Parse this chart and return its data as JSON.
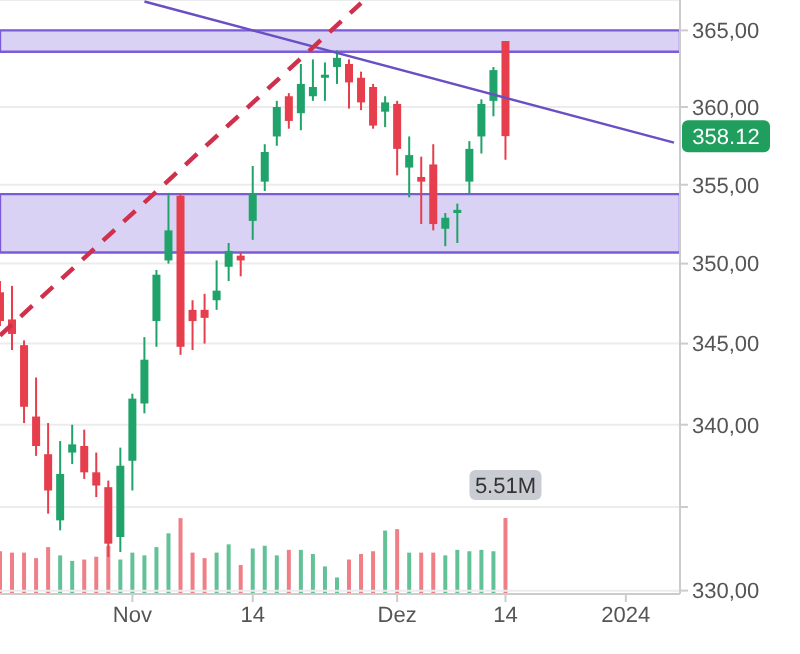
{
  "chart_data": [
    {
      "type": "candlestick",
      "categories": [
        null,
        null,
        null,
        null,
        null,
        null,
        null,
        null,
        null,
        null,
        null,
        "Nov",
        null,
        null,
        null,
        null,
        null,
        null,
        null,
        null,
        null,
        "14",
        null,
        null,
        null,
        null,
        null,
        null,
        null,
        null,
        null,
        null,
        null,
        "Dez",
        null,
        null,
        null,
        null,
        null,
        null,
        null,
        null,
        "14",
        null,
        null,
        null,
        null,
        null,
        null,
        null,
        null,
        null,
        "2024",
        null,
        null,
        null,
        null
      ],
      "ohlc": [
        [
          348.2,
          348.9,
          346.1,
          346.4
        ],
        [
          346.5,
          348.6,
          344.6,
          345.6
        ],
        [
          344.9,
          345.2,
          340.1,
          341.1
        ],
        [
          340.5,
          342.9,
          338.1,
          338.7
        ],
        [
          338.2,
          340.1,
          334.6,
          336.0
        ],
        [
          334.2,
          339.0,
          333.6,
          337.0
        ],
        [
          338.3,
          340.0,
          337.6,
          338.8
        ],
        [
          338.7,
          339.7,
          336.7,
          337.1
        ],
        [
          337.1,
          338.3,
          335.6,
          336.3
        ],
        [
          336.2,
          336.6,
          332.0,
          332.8
        ],
        [
          333.2,
          338.6,
          332.3,
          337.5
        ],
        [
          337.8,
          341.9,
          336.0,
          341.6
        ],
        [
          341.3,
          345.4,
          340.7,
          344.0
        ],
        [
          346.4,
          349.6,
          344.8,
          349.3
        ],
        [
          350.2,
          354.4,
          350.0,
          352.1
        ],
        [
          354.3,
          354.4,
          344.3,
          344.8
        ],
        [
          347.1,
          347.7,
          344.6,
          346.4
        ],
        [
          347.1,
          348.1,
          345.0,
          346.6
        ],
        [
          347.7,
          350.2,
          347.1,
          348.3
        ],
        [
          349.8,
          351.3,
          348.9,
          350.8
        ],
        [
          350.5,
          350.7,
          349.2,
          350.2
        ],
        [
          352.7,
          356.2,
          351.5,
          354.4
        ],
        [
          355.2,
          357.6,
          354.6,
          357.1
        ],
        [
          358.1,
          360.4,
          357.5,
          360.0
        ],
        [
          360.7,
          360.9,
          358.6,
          359.1
        ],
        [
          359.6,
          362.8,
          358.5,
          361.5
        ],
        [
          360.7,
          363.1,
          360.4,
          361.3
        ],
        [
          361.9,
          362.9,
          360.4,
          362.1
        ],
        [
          362.6,
          363.7,
          361.5,
          363.2
        ],
        [
          362.8,
          363.1,
          359.9,
          361.6
        ],
        [
          361.9,
          362.3,
          359.8,
          360.3
        ],
        [
          361.3,
          361.5,
          358.6,
          358.8
        ],
        [
          359.7,
          360.7,
          358.7,
          360.3
        ],
        [
          360.2,
          360.4,
          355.6,
          357.3
        ],
        [
          356.1,
          358.1,
          354.2,
          356.9
        ],
        [
          355.5,
          356.8,
          352.5,
          355.2
        ],
        [
          356.3,
          357.6,
          352.1,
          352.5
        ],
        [
          352.2,
          353.2,
          351.1,
          352.9
        ],
        [
          353.2,
          353.8,
          351.3,
          353.4
        ],
        [
          355.2,
          357.8,
          354.4,
          357.3
        ],
        [
          358.1,
          360.5,
          357.0,
          360.2
        ],
        [
          360.4,
          362.6,
          359.4,
          362.4
        ],
        [
          364.3,
          364.3,
          356.6,
          358.12
        ],
        null,
        null,
        null,
        null,
        null,
        null,
        null,
        null,
        null,
        null,
        null,
        null,
        null,
        null
      ],
      "colors": [
        "#e63e4c",
        "#e63e4c",
        "#e63e4c",
        "#e63e4c",
        "#e63e4c",
        "#20a36a",
        "#20a36a",
        "#e63e4c",
        "#e63e4c",
        "#e63e4c",
        "#20a36a",
        "#20a36a",
        "#20a36a",
        "#20a36a",
        "#20a36a",
        "#e63e4c",
        "#e63e4c",
        "#e63e4c",
        "#20a36a",
        "#20a36a",
        "#e63e4c",
        "#20a36a",
        "#20a36a",
        "#20a36a",
        "#e63e4c",
        "#20a36a",
        "#20a36a",
        "#20a36a",
        "#20a36a",
        "#e63e4c",
        "#e63e4c",
        "#e63e4c",
        "#20a36a",
        "#e63e4c",
        "#20a36a",
        "#e63e4c",
        "#e63e4c",
        "#20a36a",
        "#20a36a",
        "#20a36a",
        "#20a36a",
        "#20a36a",
        "#e63e4c",
        null,
        null,
        null,
        null,
        null,
        null,
        null,
        null,
        null,
        null,
        null,
        null,
        null,
        null
      ],
      "series": [
        {
          "type": "line",
          "color": "#6a4fc4",
          "line_style": "solid",
          "values": [
            null,
            null,
            null,
            null,
            null,
            null,
            null,
            null,
            null,
            null,
            null,
            null,
            366.9,
            null,
            null,
            null,
            null,
            null,
            null,
            null,
            null,
            null,
            null,
            null,
            null,
            null,
            null,
            null,
            null,
            null,
            null,
            null,
            null,
            null,
            null,
            null,
            null,
            null,
            null,
            null,
            null,
            null,
            null,
            null,
            null,
            null,
            null,
            null,
            null,
            null,
            null,
            null,
            null,
            null,
            null,
            null,
            357.7
          ]
        },
        {
          "type": "line",
          "color": "#d0304c",
          "line_style": "dashed",
          "values": [
            345.5,
            null,
            null,
            null,
            null,
            null,
            null,
            null,
            null,
            null,
            null,
            null,
            null,
            null,
            null,
            null,
            null,
            null,
            null,
            null,
            null,
            null,
            null,
            null,
            null,
            null,
            null,
            null,
            null,
            null,
            366.8,
            null,
            null,
            null,
            null,
            null,
            null,
            null,
            null,
            null,
            null,
            null,
            null,
            null,
            null,
            null,
            null,
            null,
            null,
            null,
            null,
            null,
            null,
            null,
            null,
            null,
            null
          ]
        }
      ],
      "bands": [
        {
          "axis": "y",
          "from": 363.6,
          "to": 365.0,
          "color": "#7b5cd6"
        },
        {
          "axis": "y",
          "from": 350.7,
          "to": 354.4,
          "color": "#7b5cd6"
        }
      ],
      "annotations": [
        {
          "text": "358.12",
          "y": 358.12
        }
      ],
      "ylim": [
        329.8,
        367.0
      ],
      "yticks": [
        {
          "value": 330,
          "label": "330,00"
        },
        {
          "value": 335,
          "label": null
        },
        {
          "value": 340,
          "label": "340,00"
        },
        {
          "value": 345,
          "label": "345,00"
        },
        {
          "value": 350,
          "label": "350,00"
        },
        {
          "value": 355,
          "label": "355,00"
        },
        {
          "value": 360,
          "label": "360,00"
        },
        {
          "value": 365,
          "label": "365,00"
        }
      ],
      "log": true,
      "grid": "y"
    },
    {
      "type": "bar",
      "tick_labels": false,
      "categories": [
        null,
        null,
        null,
        null,
        null,
        null,
        null,
        null,
        null,
        null,
        null,
        null,
        null,
        null,
        null,
        null,
        null,
        null,
        null,
        null,
        null,
        null,
        null,
        null,
        null,
        null,
        null,
        null,
        null,
        null,
        null,
        null,
        null,
        null,
        null,
        null,
        null,
        null,
        null,
        null,
        null,
        null,
        null,
        null,
        null,
        null,
        null,
        null,
        null,
        null,
        null,
        null,
        null,
        null,
        null,
        null,
        null
      ],
      "values": [
        3.1,
        3.0,
        3.0,
        2.6,
        3.4,
        2.8,
        2.4,
        2.5,
        2.7,
        3.5,
        2.5,
        3.0,
        2.8,
        3.4,
        4.4,
        5.5,
        3.0,
        2.6,
        3.0,
        3.6,
        2.1,
        3.3,
        3.5,
        2.8,
        3.2,
        3.2,
        2.9,
        2.0,
        1.2,
        2.5,
        2.9,
        3.1,
        4.6,
        4.7,
        3.0,
        3.0,
        3.0,
        2.8,
        3.2,
        3.1,
        3.2,
        3.1,
        5.51,
        null,
        null,
        null,
        null,
        null,
        null,
        null,
        null,
        null,
        null,
        null,
        null,
        null,
        null
      ],
      "colors": [
        "#ef7e87",
        "#ef7e87",
        "#ef7e87",
        "#ef7e87",
        "#ef7e87",
        "#62c197",
        "#62c197",
        "#ef7e87",
        "#ef7e87",
        "#ef7e87",
        "#62c197",
        "#62c197",
        "#62c197",
        "#62c197",
        "#62c197",
        "#ef7e87",
        "#ef7e87",
        "#ef7e87",
        "#62c197",
        "#62c197",
        "#ef7e87",
        "#62c197",
        "#62c197",
        "#62c197",
        "#ef7e87",
        "#62c197",
        "#62c197",
        "#62c197",
        "#62c197",
        "#ef7e87",
        "#ef7e87",
        "#ef7e87",
        "#62c197",
        "#ef7e87",
        "#62c197",
        "#ef7e87",
        "#ef7e87",
        "#62c197",
        "#62c197",
        "#62c197",
        "#62c197",
        "#62c197",
        "#ef7e87",
        null,
        null,
        null,
        null,
        null,
        null,
        null,
        null,
        null,
        null,
        null,
        null,
        null,
        null
      ],
      "value_labels": [
        null,
        null,
        null,
        null,
        null,
        null,
        null,
        null,
        null,
        null,
        null,
        null,
        null,
        null,
        null,
        null,
        null,
        null,
        null,
        null,
        null,
        null,
        null,
        null,
        null,
        null,
        null,
        null,
        null,
        null,
        null,
        null,
        null,
        null,
        null,
        null,
        null,
        null,
        null,
        null,
        null,
        null,
        "5.51M",
        null,
        null,
        null,
        null,
        null,
        null,
        null,
        null,
        null,
        null,
        null,
        null,
        null,
        null
      ]
    }
  ]
}
